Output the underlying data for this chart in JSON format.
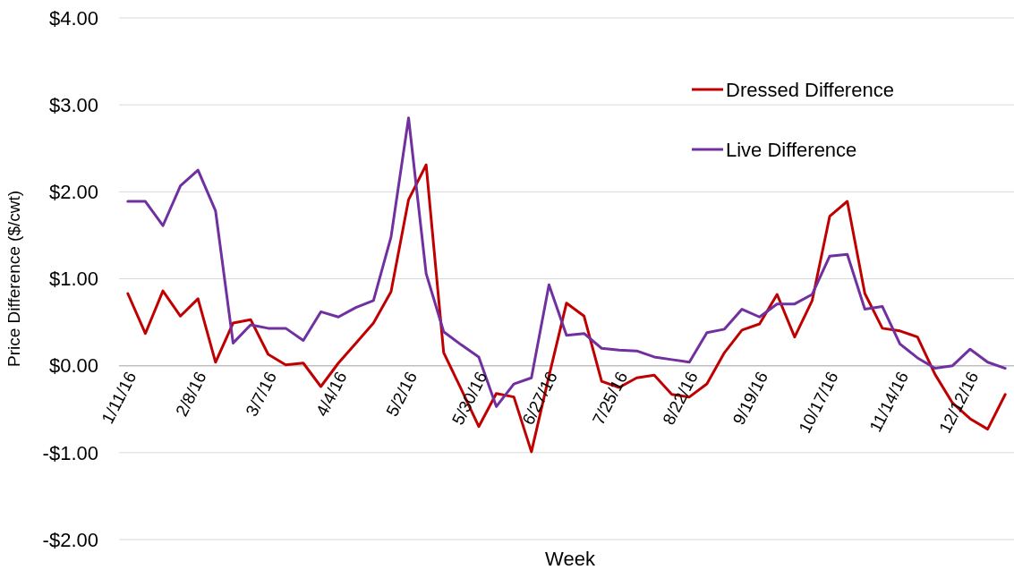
{
  "chart_data": {
    "type": "line",
    "xlabel": "Week",
    "ylabel": "Price Difference ($/cwt)",
    "categories": [
      "1/11/16",
      null,
      null,
      null,
      "2/8/16",
      null,
      null,
      null,
      "3/7/16",
      null,
      null,
      null,
      "4/4/16",
      null,
      null,
      null,
      "5/2/16",
      null,
      null,
      null,
      "5/30/16",
      null,
      null,
      null,
      "6/27/16",
      null,
      null,
      null,
      "7/25/16",
      null,
      null,
      null,
      "8/22/16",
      null,
      null,
      null,
      "9/19/16",
      null,
      null,
      null,
      "10/17/16",
      null,
      null,
      null,
      "11/14/16",
      null,
      null,
      null,
      "12/12/16",
      null,
      null
    ],
    "series": [
      {
        "name": "Dressed Difference",
        "color": "#c00000",
        "values": [
          0.83,
          0.37,
          0.86,
          0.57,
          0.77,
          0.04,
          0.49,
          0.53,
          0.13,
          0.01,
          0.03,
          -0.24,
          0.03,
          0.26,
          0.49,
          0.85,
          1.91,
          2.31,
          0.15,
          -0.27,
          -0.7,
          -0.32,
          -0.36,
          -0.99,
          -0.12,
          0.72,
          0.57,
          -0.18,
          -0.25,
          -0.14,
          -0.11,
          -0.33,
          -0.36,
          -0.21,
          0.15,
          0.41,
          0.48,
          0.82,
          0.33,
          0.75,
          1.72,
          1.89,
          0.83,
          0.43,
          0.4,
          0.33,
          -0.1,
          -0.43,
          -0.61,
          -0.73,
          -0.33
        ]
      },
      {
        "name": "Live Difference",
        "color": "#7030a0",
        "values": [
          1.89,
          1.89,
          1.61,
          2.07,
          2.25,
          1.78,
          0.26,
          0.47,
          0.43,
          0.43,
          0.29,
          0.62,
          0.56,
          0.67,
          0.75,
          1.48,
          2.85,
          1.06,
          0.39,
          0.24,
          0.1,
          -0.47,
          -0.21,
          -0.14,
          0.93,
          0.35,
          0.37,
          0.2,
          0.18,
          0.17,
          0.1,
          0.07,
          0.04,
          0.38,
          0.42,
          0.65,
          0.56,
          0.71,
          0.71,
          0.82,
          1.26,
          1.28,
          0.65,
          0.68,
          0.25,
          0.09,
          -0.03,
          0.0,
          0.19,
          0.04,
          -0.03
        ]
      }
    ],
    "ylim": [
      -2,
      4
    ],
    "yticks": [
      {
        "value": -2,
        "label": "-$2.00"
      },
      {
        "value": -1,
        "label": "-$1.00"
      },
      {
        "value": 0,
        "label": "$0.00"
      },
      {
        "value": 1,
        "label": "$1.00"
      },
      {
        "value": 2,
        "label": "$2.00"
      },
      {
        "value": 3,
        "label": "$3.00"
      },
      {
        "value": 4,
        "label": "$4.00"
      }
    ],
    "grid": "y",
    "legend": "top right",
    "line_style": "solid",
    "marker": "none"
  }
}
